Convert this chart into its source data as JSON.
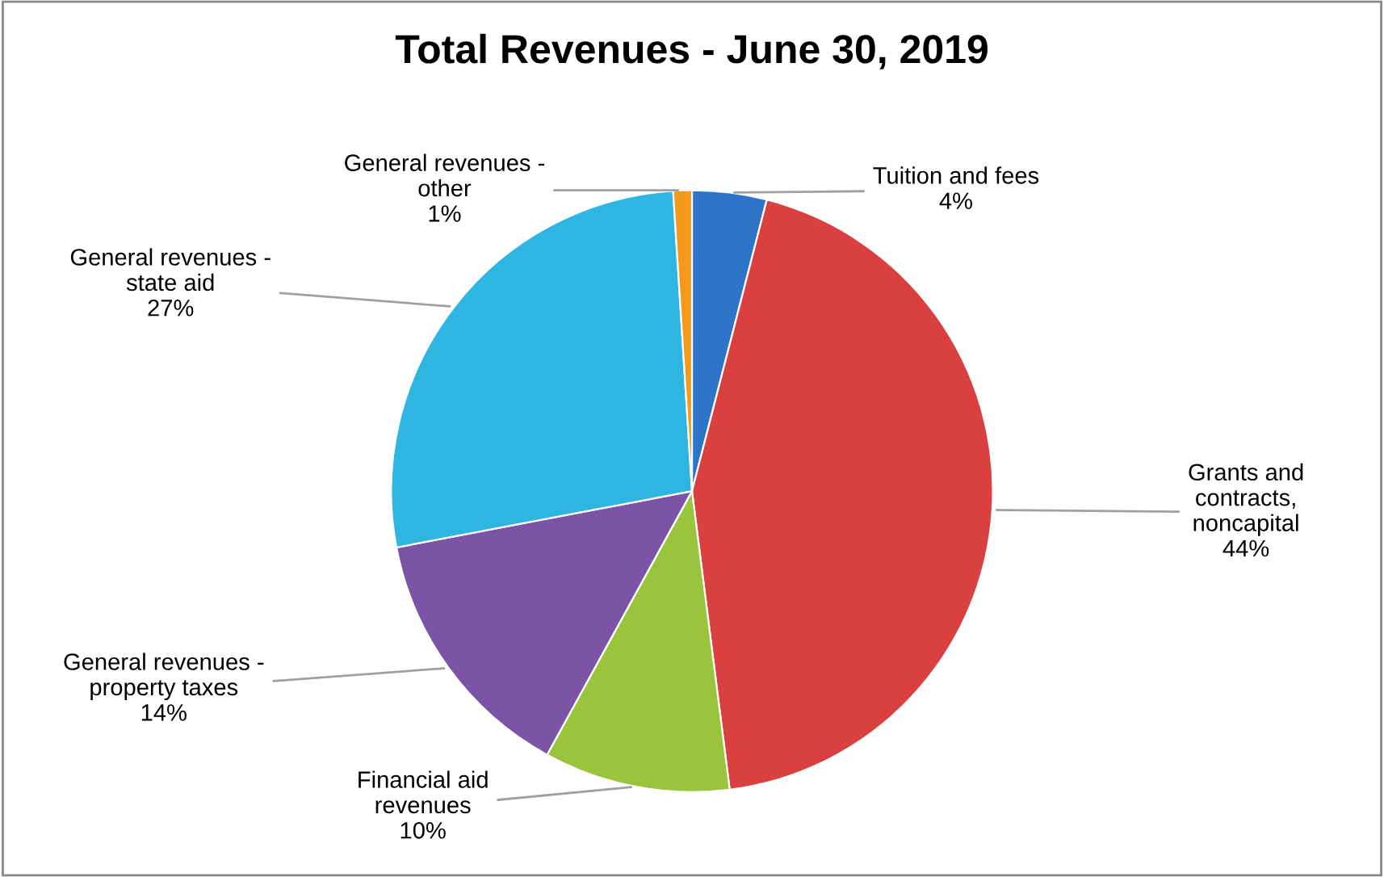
{
  "chart_data": {
    "type": "pie",
    "title": "Total Revenues - June 30, 2019",
    "categories": [
      "Tuition and fees",
      "Grants and\ncontracts,\nnoncapital",
      "Financial aid\nrevenues",
      "General revenues -\nproperty taxes",
      "General revenues -\nstate aid",
      "General revenues -\nother"
    ],
    "values": [
      4,
      44,
      10,
      14,
      27,
      1
    ],
    "colors": [
      "#2e75c9",
      "#d9403f",
      "#9bc43d",
      "#7b54a6",
      "#2fb6e0",
      "#f39a1c"
    ],
    "value_labels": [
      "4%",
      "44%",
      "10%",
      "14%",
      "27%",
      "1%"
    ],
    "legend": false
  }
}
